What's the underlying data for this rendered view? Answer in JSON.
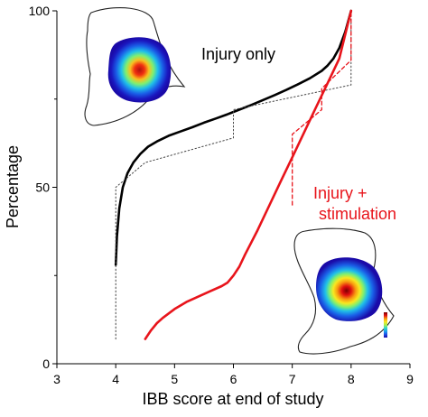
{
  "chart_data": {
    "type": "line",
    "xlabel": "IBB score at end of study",
    "ylabel": "Percentage",
    "xlim": [
      3,
      9
    ],
    "ylim": [
      0,
      100
    ],
    "xticks": [
      3,
      4,
      5,
      6,
      7,
      8,
      9
    ],
    "yticks": [
      0,
      50,
      100
    ],
    "grid": false,
    "legend": "none",
    "colors": {
      "injury_only": "#000000",
      "injury_stimulation": "#e8141b",
      "outline": "#222222"
    },
    "annotations": [
      {
        "text": "Injury only",
        "color": "#000000",
        "series_index": 0
      },
      {
        "text": "Injury +",
        "color": "#e8141b",
        "series_index": 1
      },
      {
        "text": "stimulation",
        "color": "#e8141b",
        "series_index": 1
      }
    ],
    "series": [
      {
        "kind": "fitted",
        "color": "#000000",
        "style": "solid",
        "x": [
          4.0,
          4.02,
          4.06,
          4.12,
          4.2,
          4.3,
          4.42,
          4.55,
          4.7,
          4.9,
          5.1,
          5.3,
          5.5,
          5.7,
          5.9,
          6.1,
          6.3,
          6.5,
          6.7,
          6.9,
          7.1,
          7.3,
          7.5,
          7.6,
          7.7,
          7.8,
          7.9,
          8.0
        ],
        "y": [
          28,
          36,
          44,
          50,
          54,
          57,
          59.5,
          61.5,
          63,
          64.6,
          65.8,
          67,
          68.3,
          69.5,
          70.7,
          72,
          73.3,
          74.7,
          76.1,
          77.6,
          79.2,
          80.9,
          83,
          84.5,
          86.5,
          89.5,
          94,
          100
        ]
      },
      {
        "kind": "empirical",
        "color": "#000000",
        "style": "dotted",
        "x": [
          4.0,
          4.0,
          4.0,
          4.0,
          4.5,
          4.5,
          6.0,
          6.0,
          8.0,
          8.0
        ],
        "y": [
          7,
          28,
          48,
          50,
          57,
          57,
          64,
          72,
          79,
          100
        ]
      },
      {
        "kind": "fitted",
        "color": "#e8141b",
        "style": "solid",
        "x": [
          4.5,
          4.6,
          4.7,
          4.8,
          5.0,
          5.2,
          5.4,
          5.6,
          5.8,
          5.9,
          6.0,
          6.1,
          6.2,
          6.4,
          6.6,
          6.8,
          7.0,
          7.2,
          7.4,
          7.6,
          7.8,
          8.0
        ],
        "y": [
          7,
          9.5,
          11.5,
          13,
          15.5,
          17.5,
          19,
          20.5,
          22,
          23,
          25,
          27.5,
          31,
          37.5,
          44.5,
          51.5,
          58.5,
          65.5,
          72.5,
          79.5,
          86.5,
          100
        ]
      },
      {
        "kind": "empirical",
        "color": "#e8141b",
        "style": "dashed",
        "x": [
          7.0,
          7.0,
          7.5,
          7.5,
          8.0,
          8.0
        ],
        "y": [
          45,
          65,
          72,
          78,
          86,
          100
        ]
      },
      {
        "kind": "empirical",
        "color": "#e8141b",
        "style": "dashed",
        "x": [
          7.0,
          7.0
        ],
        "y": [
          45,
          45
        ]
      }
    ],
    "colorbar": {
      "colors": [
        "#1a0aa8",
        "#1e4fe6",
        "#1aa0f0",
        "#30d8c8",
        "#a8f050",
        "#f8e820",
        "#f89a10",
        "#e01010",
        "#7a0000"
      ]
    }
  }
}
